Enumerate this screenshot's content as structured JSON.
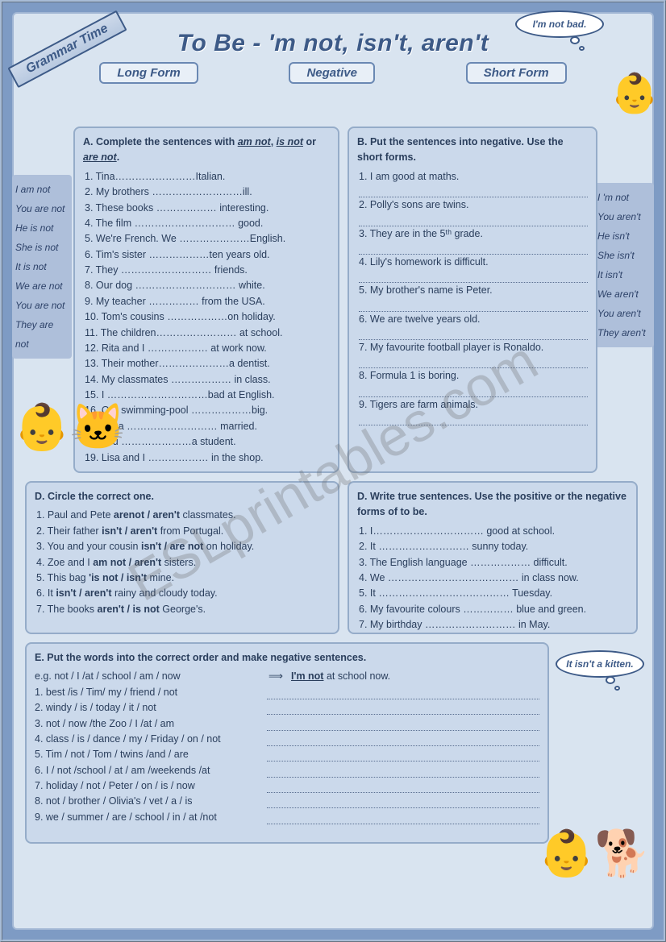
{
  "ribbon": "Grammar Time",
  "title": "To Be - 'm not, isn't, aren't",
  "labels": {
    "long": "Long Form",
    "negative": "Negative",
    "short": "Short Form"
  },
  "thought_top": "I'm not bad.",
  "thought_bot": "It isn't a kitten.",
  "watermark": "ESLprintables.com",
  "sidebox_left": [
    "I am not",
    "You are not",
    "He is not",
    "She is not",
    "It is not",
    "We are not",
    "You are not",
    "They are not"
  ],
  "sidebox_right": [
    "I 'm not",
    "You aren't",
    "He isn't",
    "She isn't",
    "It isn't",
    "We aren't",
    "You aren't",
    "They aren't"
  ],
  "A": {
    "hd": "A. Complete the sentences with <span class='u'>am not</span>, <span class='u'>is not</span> or <span class='u'>are not</span>.",
    "items": [
      "Tina……………………Italian.",
      "My brothers ………………………ill.",
      "These books ……………… interesting.",
      "The film ………………………… good.",
      "We're French. We …………………English.",
      "Tim's sister ………………ten years old.",
      "They ……………………… friends.",
      "Our dog ………………………… white.",
      "My teacher …………… from the USA.",
      "Tom's cousins ………………on holiday.",
      "The children…………………… at school.",
      "Rita and I ……………… at work now.",
      "Their mother…………………a dentist.",
      "My classmates ……………… in class.",
      "I …………………………bad at English.",
      "Our swimming-pool ………………big.",
      "Lena ……………………… married.",
      "You …………………a student.",
      "Lisa and I ……………… in the shop."
    ]
  },
  "B": {
    "hd": "B. Put the sentences into negative. Use the short forms.",
    "items": [
      "I am good at maths.",
      "Polly's sons are twins.",
      "They are in the 5ᵗʰ grade.",
      "Lily's homework is difficult.",
      "My brother's name is Peter.",
      "We are twelve years old.",
      "My favourite football player is Ronaldo.",
      "Formula 1 is boring.",
      "Tigers are farm animals."
    ]
  },
  "C": {
    "hd": "D. Circle the correct one.",
    "items": [
      "Paul and Pete <b>arenot / aren't</b> classmates.",
      "Their father <b>isn't / aren't</b> from Portugal.",
      "You and your cousin <b>isn't / are not</b> on holiday.",
      "Zoe and I <b>am not / aren't</b> sisters.",
      "This bag <b>'is not / isn't</b> mine.",
      "It <b>isn't / aren't</b> rainy and cloudy today.",
      "The books <b>aren't / is not</b> George's."
    ]
  },
  "D": {
    "hd": "D. Write true sentences. Use the positive or the negative forms of to be.",
    "items": [
      "I…………………………… good at school.",
      "It ……………………… sunny today.",
      "The English language ……………… difficult.",
      "We ………………………………… in class now.",
      "It ………………………………… Tuesday.",
      "My favourite colours …………… blue and green.",
      "My birthday ……………………… in May."
    ]
  },
  "E": {
    "hd": "E. Put the words into the correct order and make negative sentences.",
    "eg_l": "e.g. not / I /at / school / am / now",
    "eg_r": "I'm not at school now.",
    "items": [
      "best /is / Tim/ my / friend / not",
      "windy / is / today / it / not",
      "not / now /the Zoo / I /at / am",
      "class / is / dance / my / Friday / on / not",
      "Tim / not / Tom / twins /and / are",
      "I / not /school / at / am /weekends /at",
      "holiday / not / Peter / on / is / now",
      "not / brother / Olivia's / vet / a / is",
      "we / summer / are / school / in / at /not"
    ]
  }
}
